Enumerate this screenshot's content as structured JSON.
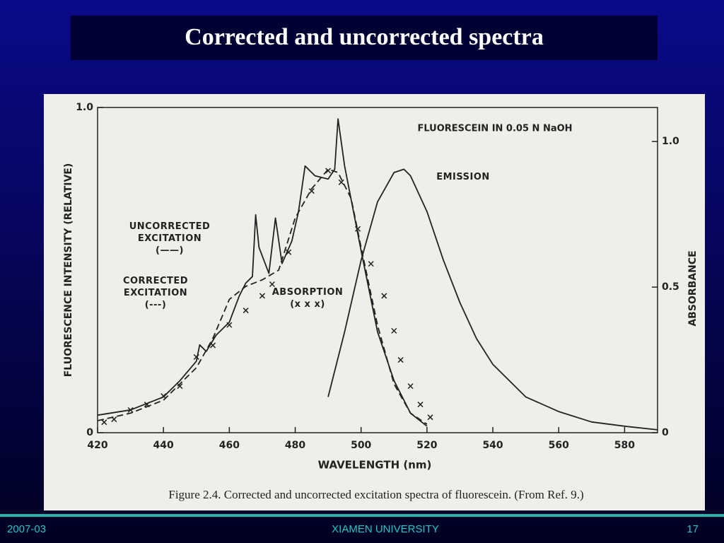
{
  "slide": {
    "title": "Corrected and uncorrected spectra",
    "footer": {
      "date": "2007-03",
      "org": "XIAMEN UNIVERSITY",
      "page": "17"
    },
    "caption": "Figure 2.4.  Corrected and uncorrected excitation spectra of fluorescein. (From Ref. 9.)"
  },
  "chart_data": {
    "type": "line",
    "title": "FLUORESCEIN IN 0.05 N NaOH",
    "x_label": "WAVELENGTH (nm)",
    "y_label": "FLUORESCENCE INTENSITY (RELATIVE)",
    "y2_label": "ABSORBANCE",
    "xlim": [
      420,
      590
    ],
    "xticks": [
      420,
      440,
      460,
      480,
      500,
      520,
      540,
      560,
      580
    ],
    "ylim": [
      0,
      1
    ],
    "yticks": [
      0,
      {
        "value": 1,
        "label": "1.0"
      }
    ],
    "y2lim": [
      0,
      1.117
    ],
    "y2ticks": [
      0,
      0.5,
      {
        "value": 1,
        "label": "1.0"
      }
    ],
    "series": [
      {
        "name": "UNCORRECTED EXCITATION",
        "style_label": "(——)",
        "style": "solid",
        "color": "#222222",
        "x": [
          420,
          430,
          440,
          445,
          450,
          451,
          453,
          456,
          460,
          463,
          465,
          467,
          468,
          469,
          472,
          474,
          476,
          479,
          481,
          483,
          486,
          490,
          492,
          493,
          495,
          500,
          505,
          510,
          515,
          520
        ],
        "values": [
          0.054,
          0.07,
          0.11,
          0.16,
          0.22,
          0.27,
          0.25,
          0.3,
          0.34,
          0.42,
          0.46,
          0.48,
          0.67,
          0.57,
          0.49,
          0.66,
          0.52,
          0.59,
          0.68,
          0.82,
          0.79,
          0.78,
          0.81,
          0.965,
          0.82,
          0.56,
          0.31,
          0.16,
          0.06,
          0.02
        ]
      },
      {
        "name": "CORRECTED EXCITATION",
        "style_label": "(---)",
        "style": "dashed",
        "color": "#222222",
        "x": [
          420,
          430,
          440,
          450,
          455,
          460,
          465,
          470,
          475,
          480,
          485,
          490,
          493,
          497,
          500,
          505,
          510,
          515,
          520
        ],
        "values": [
          0.037,
          0.06,
          0.1,
          0.2,
          0.29,
          0.41,
          0.45,
          0.47,
          0.5,
          0.66,
          0.75,
          0.81,
          0.8,
          0.72,
          0.57,
          0.33,
          0.15,
          0.06,
          0.026
        ]
      },
      {
        "name": "ABSORPTION",
        "style_label": "(x x x)",
        "style": "markers",
        "color": "#222222",
        "axis": "y2",
        "x": [
          422,
          425,
          430,
          435,
          440,
          445,
          450,
          455,
          460,
          465,
          470,
          473,
          478,
          485,
          490,
          494,
          499,
          503,
          507,
          510,
          512,
          515,
          518,
          521
        ],
        "values": [
          0.036,
          0.046,
          0.078,
          0.097,
          0.126,
          0.16,
          0.26,
          0.3,
          0.37,
          0.42,
          0.47,
          0.51,
          0.62,
          0.83,
          0.9,
          0.86,
          0.7,
          0.58,
          0.47,
          0.35,
          0.25,
          0.16,
          0.097,
          0.053
        ]
      },
      {
        "name": "EMISSION",
        "style": "solid",
        "color": "#222222",
        "x": [
          490,
          495,
          500,
          505,
          510,
          513,
          515,
          520,
          525,
          530,
          535,
          540,
          550,
          560,
          570,
          580,
          590
        ],
        "values": [
          0.11,
          0.31,
          0.53,
          0.71,
          0.8,
          0.81,
          0.79,
          0.68,
          0.53,
          0.4,
          0.29,
          0.21,
          0.11,
          0.065,
          0.033,
          0.02,
          0.009
        ]
      }
    ]
  }
}
